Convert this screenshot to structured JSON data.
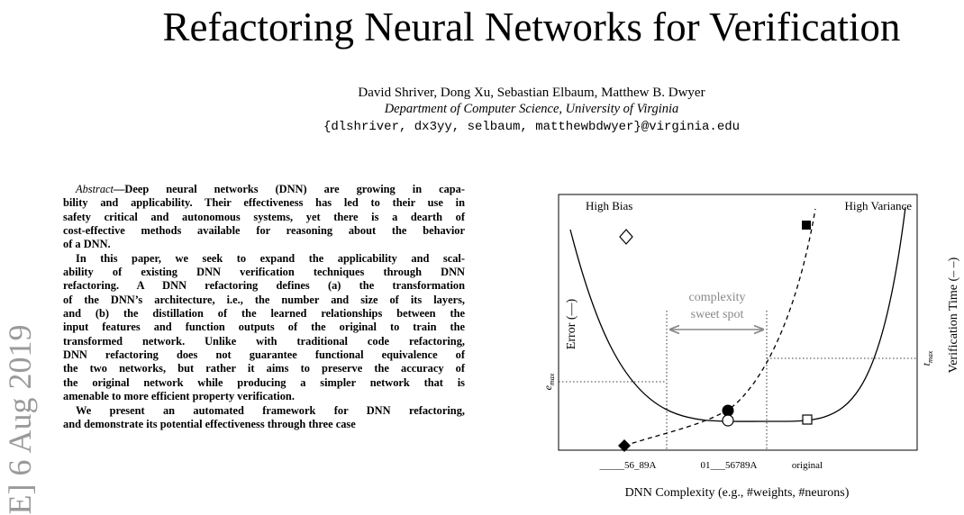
{
  "header": {
    "title": "Refactoring Neural Networks for Verification",
    "authors": "David Shriver, Dong Xu, Sebastian Elbaum, Matthew B. Dwyer",
    "affiliation": "Department of Computer Science, University of Virginia",
    "email": "{dlshriver, dx3yy, selbaum, matthewbdwyer}@virginia.edu"
  },
  "watermark": "E] 6 Aug 2019",
  "abstract": {
    "label": "Abstract",
    "paragraphs": [
      [
        "—Deep neural networks (DNN) are growing in capa-",
        "bility and applicability. Their effectiveness has led to their use in",
        "safety critical and autonomous systems, yet there is a dearth of",
        "cost-effective methods available for reasoning about the behavior",
        "of a DNN."
      ],
      [
        "In this paper, we seek to expand the applicability and scal-",
        "ability of existing DNN verification techniques through DNN",
        "refactoring. A DNN refactoring defines (a) the transformation",
        "of the DNN’s architecture, i.e., the number and size of its layers,",
        "and (b) the distillation of the learned relationships between the",
        "input features and function outputs of the original to train the",
        "transformed network. Unlike with traditional code refactoring,",
        "DNN refactoring does not guarantee functional equivalence of",
        "the two networks, but rather it aims to preserve the accuracy of",
        "the original network while producing a simpler network that is",
        "amenable to more efficient property verification."
      ],
      [
        "We present an automated framework for DNN refactoring,",
        "and demonstrate its potential effectiveness through three case"
      ]
    ]
  },
  "figure": {
    "high_bias": "High Bias",
    "high_variance": "High Variance",
    "sweet_spot": [
      "complexity",
      "sweet spot"
    ],
    "y_label": "Error (—)",
    "y2_label": "Verification Time (– –)",
    "e_max": {
      "symbol": "e",
      "sub": "max"
    },
    "t_max": {
      "symbol": "t",
      "sub": "max"
    },
    "x_labels": [
      "_____56_89A",
      "01___56789A",
      "original"
    ],
    "caption": "DNN Complexity (e.g., #weights, #neurons)"
  }
}
